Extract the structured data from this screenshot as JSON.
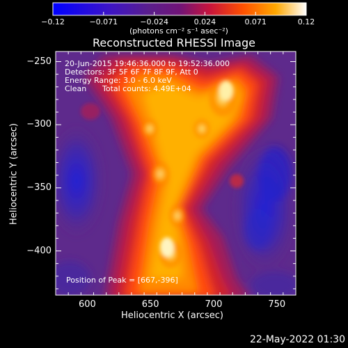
{
  "chart_data": {
    "type": "heatmap",
    "title": "Reconstructed RHESSI Image",
    "xlabel": "Heliocentric X (arcsec)",
    "ylabel": "Heliocentric Y (arcsec)",
    "xlim": [
      575,
      765
    ],
    "ylim": [
      -435,
      -242
    ],
    "x_ticks": [
      600,
      650,
      700,
      750
    ],
    "x_tick_labels": [
      "600",
      "650",
      "700",
      "750"
    ],
    "y_ticks": [
      -250,
      -300,
      -350,
      -400
    ],
    "y_tick_labels": [
      "−250",
      "−300",
      "−350",
      "−400"
    ],
    "colorbar": {
      "range": [
        -0.12,
        0.12
      ],
      "tick_labels": [
        "−0.12",
        "−0.071",
        "−0.024",
        "0.024",
        "0.071",
        "0.12"
      ],
      "label": "(photons cm⁻² s⁻¹ asec⁻²)"
    },
    "annotations": {
      "time_range": "20-Jun-2015 19:46:36.000 to 19:52:36.000",
      "detectors": "Detectors: 3F 5F 6F 7F 8F 9F, Att 0",
      "energy": "Energy Range: 3.0 - 6.0 keV",
      "clean_label": "Clean",
      "total_counts": "Total counts: 4.49E+04",
      "peak": "Position of Peak = [667,-396]"
    },
    "peak_position": [
      667,
      -396
    ],
    "footer_date": "22-May-2022 01:30"
  }
}
